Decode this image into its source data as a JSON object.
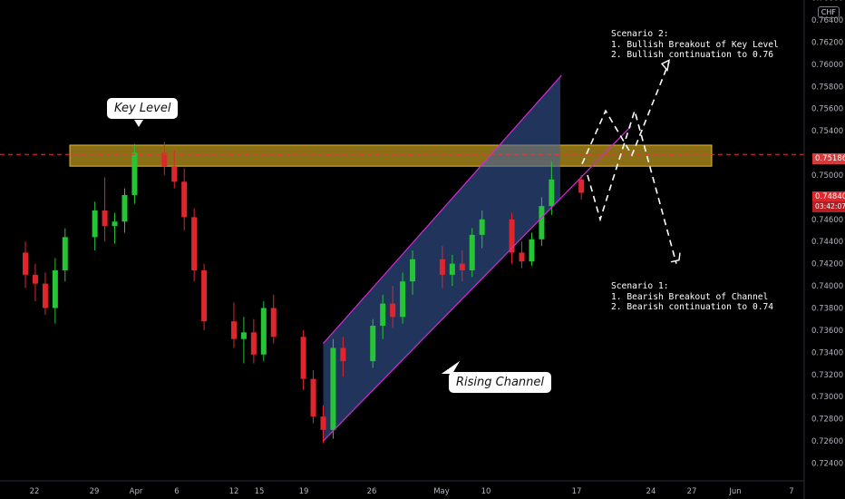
{
  "currency": "CHF",
  "colors": {
    "background": "#000000",
    "bull": "#26c535",
    "bear": "#e0262d",
    "key_zone_fill": "#b8941e",
    "channel_fill": "#3c5ea8",
    "channel_border": "#d42ad6",
    "resistance_line": "#e03a3a",
    "projection": "#ffffff"
  },
  "annotations": {
    "key_level": "Key Level",
    "rising_channel": "Rising Channel",
    "scenario_2": "Scenario 2:\n1. Bullish Breakout of Key Level\n2. Bullish continuation to 0.76",
    "scenario_1": "Scenario 1:\n1. Bearish Breakout of Channel\n2. Bearish continuation to 0.74"
  },
  "price_badges": {
    "level_line": "0.75186",
    "last_price": "0.74840",
    "countdown": "03:42:07"
  },
  "chart_data": {
    "type": "candlestick",
    "title": "",
    "y_axis": {
      "range": [
        0.7224,
        0.7658
      ],
      "ticks": [
        "0.76400",
        "0.76200",
        "0.76000",
        "0.75800",
        "0.75600",
        "0.75400",
        "0.75000",
        "0.74600",
        "0.74400",
        "0.74200",
        "0.74000",
        "0.73800",
        "0.73600",
        "0.73400",
        "0.73200",
        "0.73000",
        "0.72800",
        "0.72600",
        "0.72400"
      ],
      "partial_top_tick": "0.76600",
      "position": "right"
    },
    "x_axis": {
      "ticks": [
        "22",
        "29",
        "Apr",
        "6",
        "12",
        "15",
        "19",
        "26",
        "May",
        "10",
        "17",
        "24",
        "27",
        "Jun",
        "7"
      ]
    },
    "key_level_zone": [
      0.7508,
      0.7527
    ],
    "horizontal_level": 0.75186,
    "last_price": 0.7484,
    "channel": {
      "lower_line": [
        [
          "Apr 21",
          0.726
        ],
        [
          "May 22",
          0.7544
        ]
      ],
      "upper_line": [
        [
          "Apr 21",
          0.7348
        ],
        [
          "May 15",
          0.759
        ]
      ]
    },
    "scenario_2_path": [
      0.751,
      0.7558,
      0.7518,
      0.7602
    ],
    "scenario_1_path": [
      0.75,
      0.746,
      0.7558,
      0.742
    ],
    "candles": [
      {
        "date": "Mar 18",
        "open": 0.7416,
        "high": 0.747,
        "low": 0.7402,
        "close": 0.7448
      },
      {
        "date": "Mar 19",
        "open": 0.7448,
        "high": 0.746,
        "low": 0.742,
        "close": 0.743
      },
      {
        "date": "Mar 22",
        "open": 0.743,
        "high": 0.744,
        "low": 0.7398,
        "close": 0.741
      },
      {
        "date": "Mar 23",
        "open": 0.741,
        "high": 0.742,
        "low": 0.7386,
        "close": 0.7402
      },
      {
        "date": "Mar 24",
        "open": 0.7402,
        "high": 0.7412,
        "low": 0.7374,
        "close": 0.738
      },
      {
        "date": "Mar 25",
        "open": 0.738,
        "high": 0.7425,
        "low": 0.7366,
        "close": 0.7414
      },
      {
        "date": "Mar 26",
        "open": 0.7414,
        "high": 0.7452,
        "low": 0.7404,
        "close": 0.7444
      },
      {
        "date": "Mar 29",
        "open": 0.7444,
        "high": 0.7476,
        "low": 0.7432,
        "close": 0.7468
      },
      {
        "date": "Mar 30",
        "open": 0.7468,
        "high": 0.7498,
        "low": 0.744,
        "close": 0.7454
      },
      {
        "date": "Mar 31",
        "open": 0.7454,
        "high": 0.7466,
        "low": 0.7438,
        "close": 0.7458
      },
      {
        "date": "Apr 1",
        "open": 0.7458,
        "high": 0.7488,
        "low": 0.7448,
        "close": 0.7482
      },
      {
        "date": "Apr 2",
        "open": 0.7482,
        "high": 0.7528,
        "low": 0.7474,
        "close": 0.752
      },
      {
        "date": "Apr 5",
        "open": 0.752,
        "high": 0.753,
        "low": 0.75,
        "close": 0.7508
      },
      {
        "date": "Apr 6",
        "open": 0.7508,
        "high": 0.7522,
        "low": 0.7488,
        "close": 0.7494
      },
      {
        "date": "Apr 7",
        "open": 0.7494,
        "high": 0.7506,
        "low": 0.745,
        "close": 0.7462
      },
      {
        "date": "Apr 8",
        "open": 0.7462,
        "high": 0.747,
        "low": 0.7404,
        "close": 0.7414
      },
      {
        "date": "Apr 9",
        "open": 0.7414,
        "high": 0.742,
        "low": 0.736,
        "close": 0.7368
      },
      {
        "date": "Apr 12",
        "open": 0.7368,
        "high": 0.7385,
        "low": 0.7344,
        "close": 0.7352
      },
      {
        "date": "Apr 13",
        "open": 0.7352,
        "high": 0.7372,
        "low": 0.733,
        "close": 0.7358
      },
      {
        "date": "Apr 14",
        "open": 0.7358,
        "high": 0.737,
        "low": 0.733,
        "close": 0.7338
      },
      {
        "date": "Apr 15",
        "open": 0.7338,
        "high": 0.7386,
        "low": 0.7332,
        "close": 0.738
      },
      {
        "date": "Apr 16",
        "open": 0.738,
        "high": 0.7392,
        "low": 0.7348,
        "close": 0.7354
      },
      {
        "date": "Apr 19",
        "open": 0.7354,
        "high": 0.736,
        "low": 0.7306,
        "close": 0.7316
      },
      {
        "date": "Apr 20",
        "open": 0.7316,
        "high": 0.7324,
        "low": 0.7276,
        "close": 0.7282
      },
      {
        "date": "Apr 21",
        "open": 0.7282,
        "high": 0.7292,
        "low": 0.7258,
        "close": 0.727
      },
      {
        "date": "Apr 22",
        "open": 0.727,
        "high": 0.7352,
        "low": 0.7262,
        "close": 0.7344
      },
      {
        "date": "Apr 23",
        "open": 0.7344,
        "high": 0.7354,
        "low": 0.7318,
        "close": 0.7332
      },
      {
        "date": "Apr 26",
        "open": 0.7332,
        "high": 0.737,
        "low": 0.7326,
        "close": 0.7364
      },
      {
        "date": "Apr 27",
        "open": 0.7364,
        "high": 0.7392,
        "low": 0.7352,
        "close": 0.7384
      },
      {
        "date": "Apr 28",
        "open": 0.7384,
        "high": 0.74,
        "low": 0.7362,
        "close": 0.7372
      },
      {
        "date": "Apr 29",
        "open": 0.7372,
        "high": 0.7412,
        "low": 0.7366,
        "close": 0.7404
      },
      {
        "date": "Apr 30",
        "open": 0.7404,
        "high": 0.7432,
        "low": 0.7392,
        "close": 0.7424
      },
      {
        "date": "May 3",
        "open": 0.7424,
        "high": 0.7436,
        "low": 0.7398,
        "close": 0.741
      },
      {
        "date": "May 4",
        "open": 0.741,
        "high": 0.7428,
        "low": 0.74,
        "close": 0.742
      },
      {
        "date": "May 5",
        "open": 0.742,
        "high": 0.7432,
        "low": 0.7404,
        "close": 0.7414
      },
      {
        "date": "May 6",
        "open": 0.7414,
        "high": 0.7452,
        "low": 0.7408,
        "close": 0.7446
      },
      {
        "date": "May 7",
        "open": 0.7446,
        "high": 0.7468,
        "low": 0.7434,
        "close": 0.746
      },
      {
        "date": "May 10",
        "open": 0.746,
        "high": 0.7466,
        "low": 0.742,
        "close": 0.743
      },
      {
        "date": "May 11",
        "open": 0.743,
        "high": 0.744,
        "low": 0.7416,
        "close": 0.7422
      },
      {
        "date": "May 12",
        "open": 0.7422,
        "high": 0.7448,
        "low": 0.7418,
        "close": 0.7442
      },
      {
        "date": "May 13",
        "open": 0.7442,
        "high": 0.748,
        "low": 0.7436,
        "close": 0.7472
      },
      {
        "date": "May 14",
        "open": 0.7472,
        "high": 0.7512,
        "low": 0.7464,
        "close": 0.7496
      },
      {
        "date": "May 17",
        "open": 0.7496,
        "high": 0.75,
        "low": 0.7478,
        "close": 0.7484
      }
    ]
  }
}
